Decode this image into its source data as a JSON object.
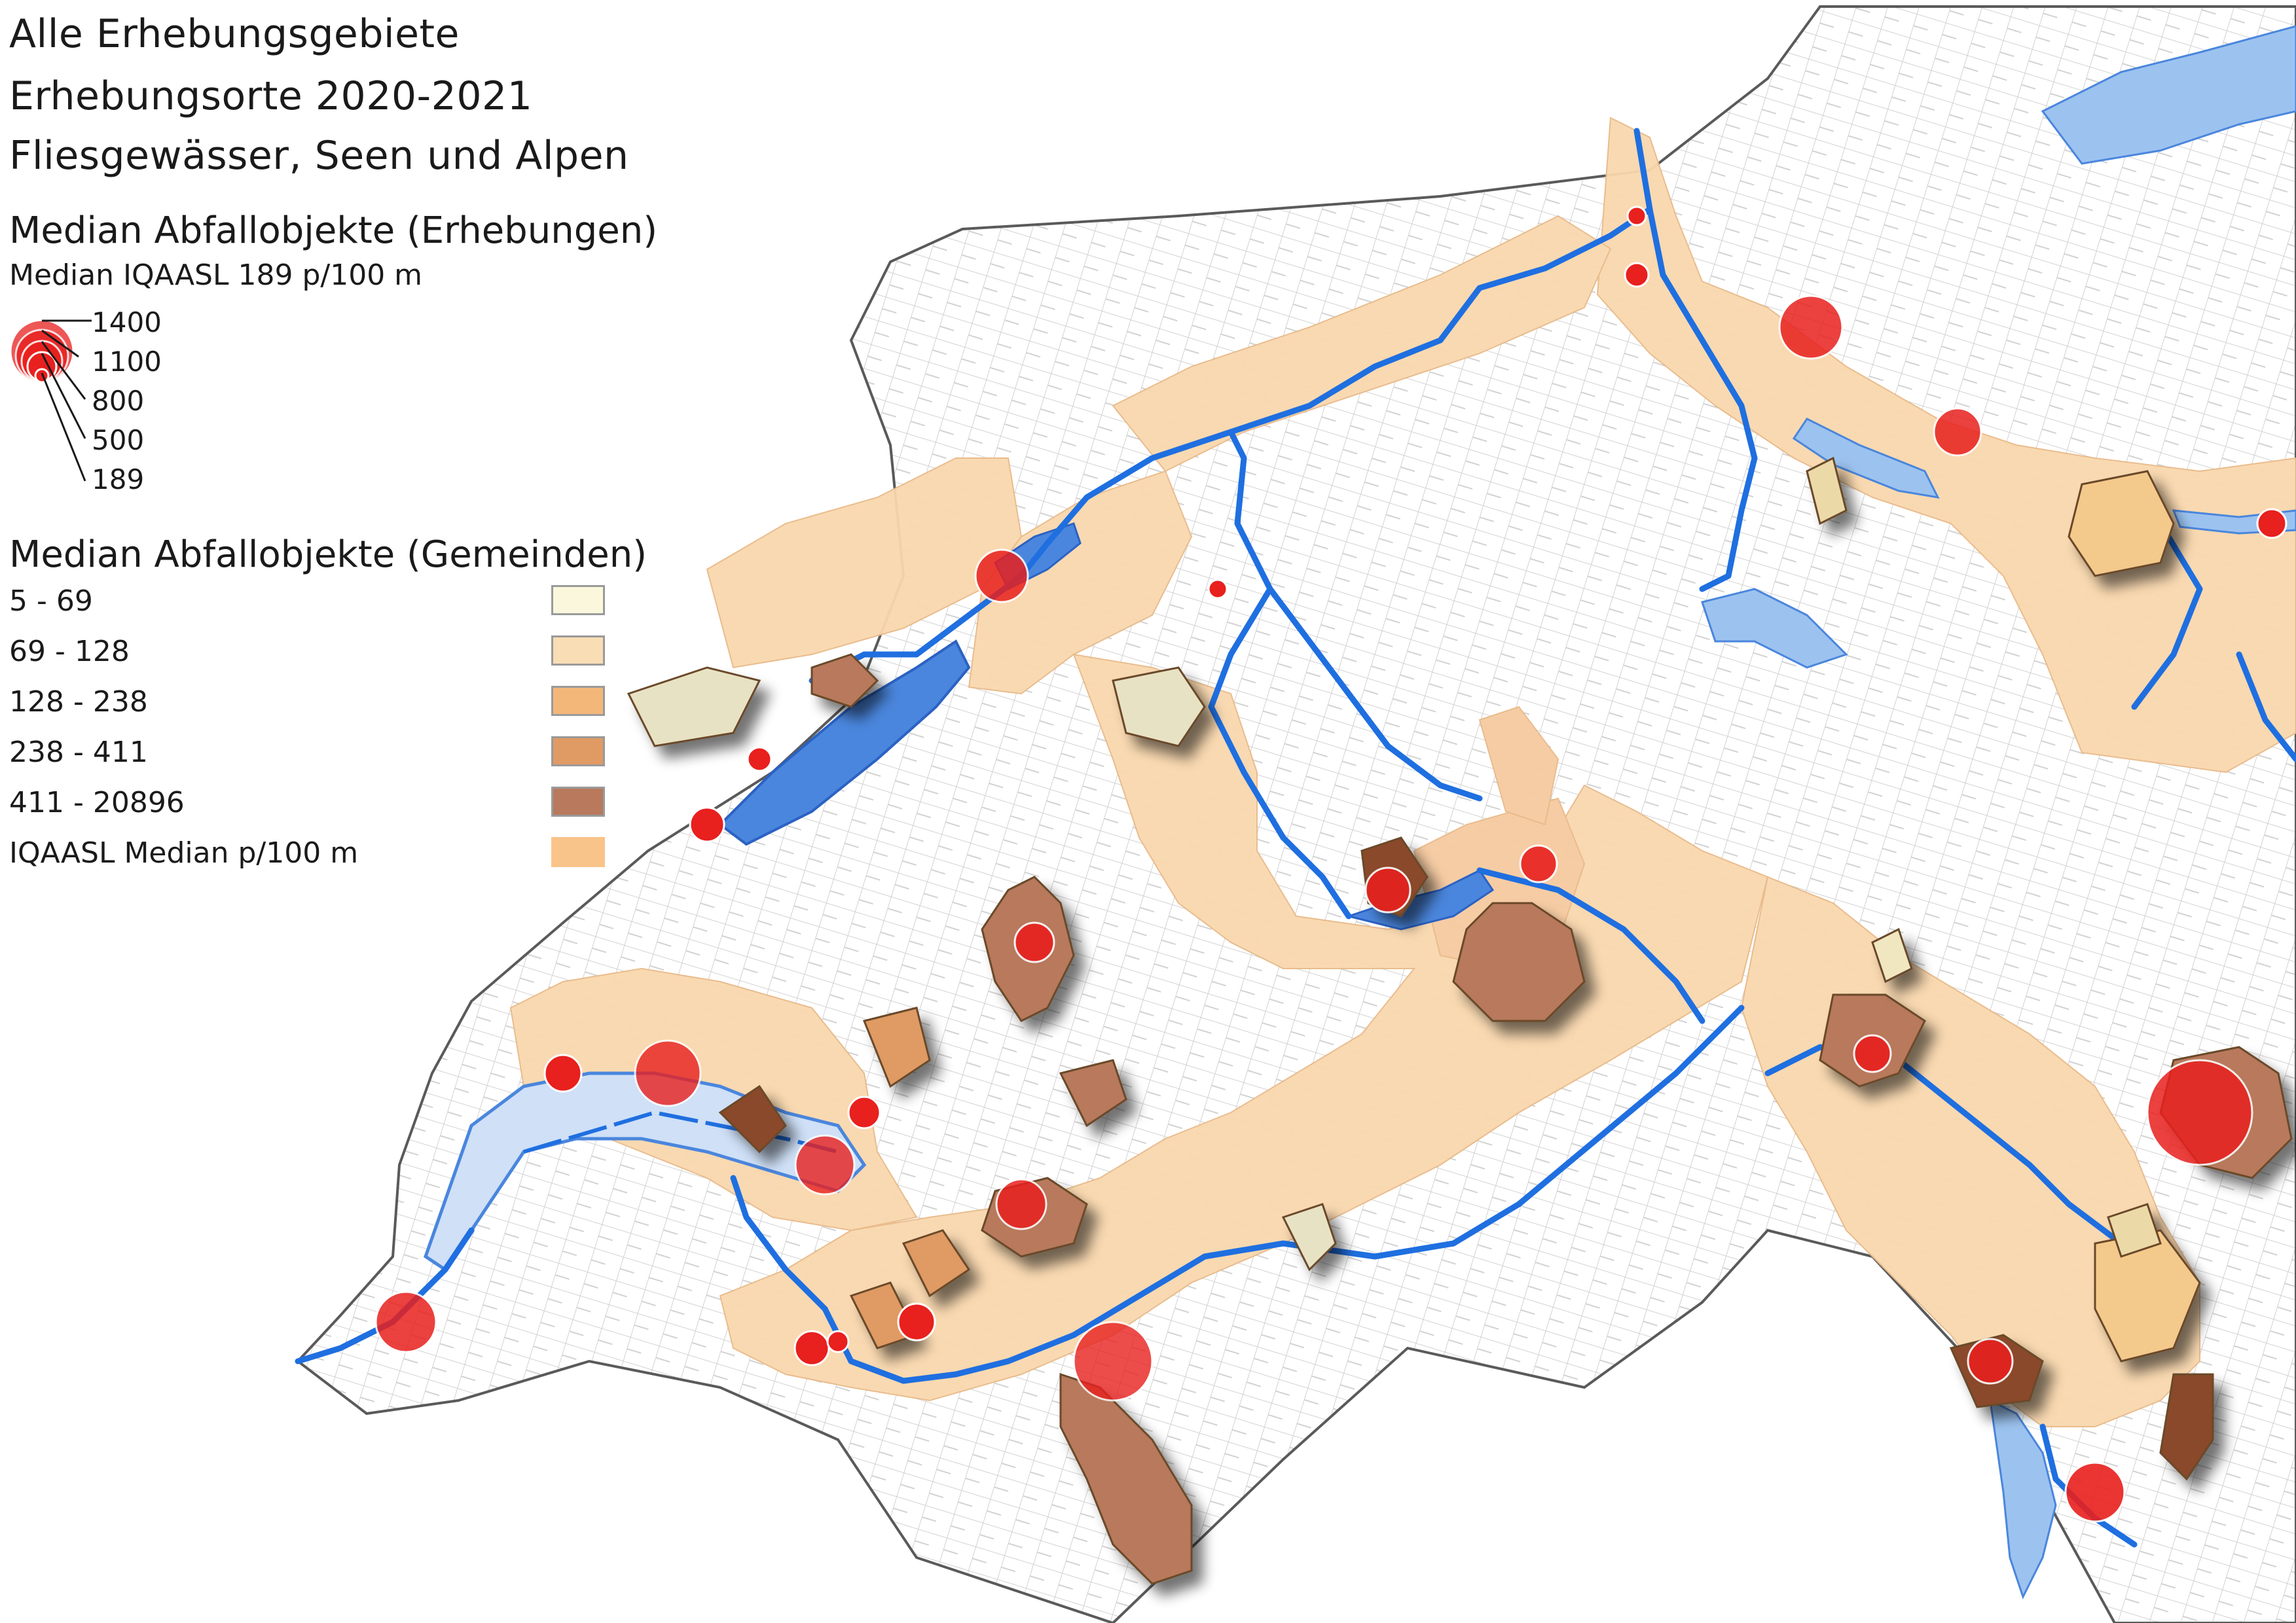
{
  "titles": [
    "Alle Erhebungsgebiete",
    "Erhebungsorte 2020-2021",
    "Fliesgewässer, Seen und Alpen"
  ],
  "legend_points": {
    "heading": "Median Abfallobjekte (Erhebungen)",
    "subheading": "Median IQAASL 189 p/100 m",
    "size_labels": [
      "1400",
      "1100",
      "800",
      "500",
      "189"
    ],
    "marker_color": "#e8201e"
  },
  "legend_communes": {
    "heading": "Median Abfallobjekte (Gemeinden)",
    "classes": [
      {
        "label": "5 - 69",
        "color": "#fbf7dc"
      },
      {
        "label": "69 - 128",
        "color": "#f9ddb5"
      },
      {
        "label": "128 - 238",
        "color": "#f4b77a"
      },
      {
        "label": "238 - 411",
        "color": "#e09a64"
      },
      {
        "label": "411 - 20896",
        "color": "#b8795c"
      },
      {
        "label": "IQAASL Median p/100 m",
        "color": "#f9c48a"
      }
    ]
  },
  "colors": {
    "lake": "#9cc3ef",
    "lake_dark": "#4a86dd",
    "river": "#1f6fe0",
    "zone": "#f9d8ad",
    "boundary": "#bfbfbf",
    "border": "#5a5a5a"
  }
}
